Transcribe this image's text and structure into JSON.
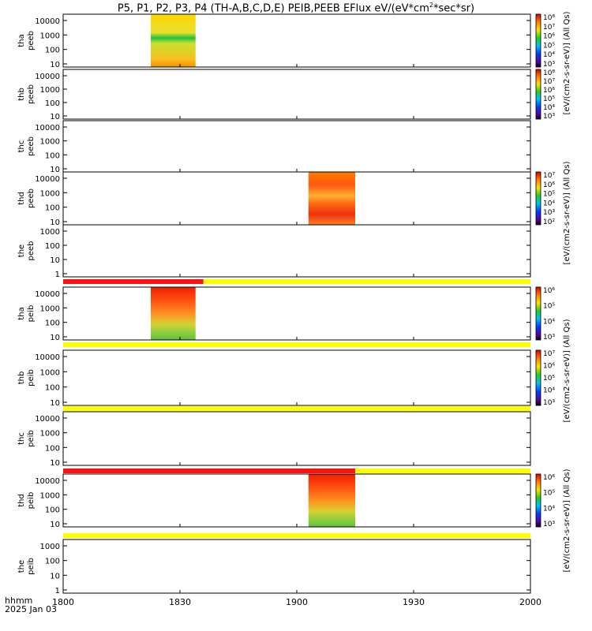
{
  "title_parts": {
    "pre": "P5, P1, P2, P3, P4 (TH-A,B,C,D,E) PEIB,PEEB EFlux eV/(eV*cm",
    "sup": "2",
    "post": "*sec*sr)"
  },
  "footer": {
    "line1": "hhmm",
    "line2": "2025 Jan 03"
  },
  "chart_data": {
    "type": "heatmap",
    "x": {
      "ticks": [
        "1800",
        "1830",
        "1900",
        "1930",
        "2000"
      ],
      "range_minutes": [
        0,
        120
      ]
    },
    "panels": [
      {
        "name": "thd-peeb-a",
        "label1": "tha",
        "label2": "peeb",
        "yticks": [
          "10000",
          "1000",
          "100",
          "10"
        ],
        "spectrogram": {
          "x": [
            22.5,
            34
          ],
          "color": "yellow-green"
        },
        "colorbar": "yes"
      },
      {
        "name": "thb-peeb",
        "label1": "thb",
        "label2": "peeb",
        "yticks": [
          "10000",
          "1000",
          "100",
          "10"
        ],
        "colorbar": "yes"
      },
      {
        "name": "thc-peeb",
        "label1": "thc",
        "label2": "peeb",
        "yticks": [
          "10000",
          "1000",
          "100",
          "10"
        ]
      },
      {
        "name": "thd-peeb",
        "label1": "thd",
        "label2": "peeb",
        "yticks": [
          "10000",
          "1000",
          "100",
          "10"
        ],
        "spectrogram": {
          "x": [
            63,
            75
          ],
          "color": "orange-red"
        },
        "colorbar": "yes"
      },
      {
        "name": "the-peeb",
        "label1": "the",
        "label2": "peeb",
        "yticks": [
          "1000",
          "100",
          "10",
          "1"
        ]
      },
      {
        "name": "tha-peib",
        "label1": "tha",
        "label2": "peib",
        "yticks": [
          "10000",
          "1000",
          "100",
          "10"
        ],
        "spectrogram": {
          "x": [
            22.5,
            34
          ],
          "color": "red-green"
        },
        "colorbar": "yes"
      },
      {
        "name": "thb-peib",
        "label1": "thb",
        "label2": "peib",
        "yticks": [
          "10000",
          "1000",
          "100",
          "10"
        ],
        "colorbar": "yes"
      },
      {
        "name": "thc-peib",
        "label1": "thc",
        "label2": "peib",
        "yticks": [
          "10000",
          "1000",
          "100",
          "10"
        ]
      },
      {
        "name": "thd-peib",
        "label1": "thd",
        "label2": "peib",
        "yticks": [
          "10000",
          "1000",
          "100",
          "10"
        ],
        "spectrogram": {
          "x": [
            63,
            75
          ],
          "color": "red-green"
        },
        "colorbar": "yes"
      },
      {
        "name": "the-peib",
        "label1": "the",
        "label2": "peib",
        "yticks": [
          "1000",
          "100",
          "10",
          "1"
        ]
      }
    ],
    "bars": [
      {
        "after_panel": 4,
        "red_until_minute": 36,
        "color_rest": "yellow"
      },
      {
        "after_panel": 5,
        "red_until_minute": 0,
        "color_rest": "yellow"
      },
      {
        "after_panel": 6,
        "red_until_minute": 0,
        "color_rest": "yellow"
      },
      {
        "after_panel": 7,
        "red_until_minute": 75,
        "color_rest": "yellow"
      },
      {
        "after_panel": 8,
        "red_until_minute": 0,
        "color_rest": "yellow"
      }
    ],
    "colorbars": [
      {
        "panel": 0,
        "ticks": [
          "10⁸",
          "10⁷",
          "10⁶",
          "10⁵",
          "10⁴",
          "10³"
        ]
      },
      {
        "panel": 1,
        "ticks": [
          "10⁸",
          "10⁷",
          "10⁶",
          "10⁵",
          "10⁴",
          "10³"
        ]
      },
      {
        "panel": 3,
        "ticks": [
          "10⁷",
          "10⁶",
          "10⁵",
          "10⁴",
          "10³",
          "10²"
        ]
      },
      {
        "panel": 5,
        "ticks": [
          "10⁶",
          "10⁵",
          "10⁴",
          "10³"
        ]
      },
      {
        "panel": 6,
        "ticks": [
          "10⁷",
          "10⁶",
          "10⁵",
          "10⁴",
          "10³"
        ]
      },
      {
        "panel": 8,
        "ticks": [
          "10⁶",
          "10⁵",
          "10⁴",
          "10³"
        ]
      }
    ],
    "units_labels": [
      "[eV/(cm2-s-sr-eV)] (All Qs)",
      "[eV/(cm2-s-sr-eV)] (All Qs)",
      "[eV/(cm2-s-sr-eV)] (All Qs)",
      "[eV/(cm2-s-sr-eV)] (All Qs)"
    ]
  }
}
